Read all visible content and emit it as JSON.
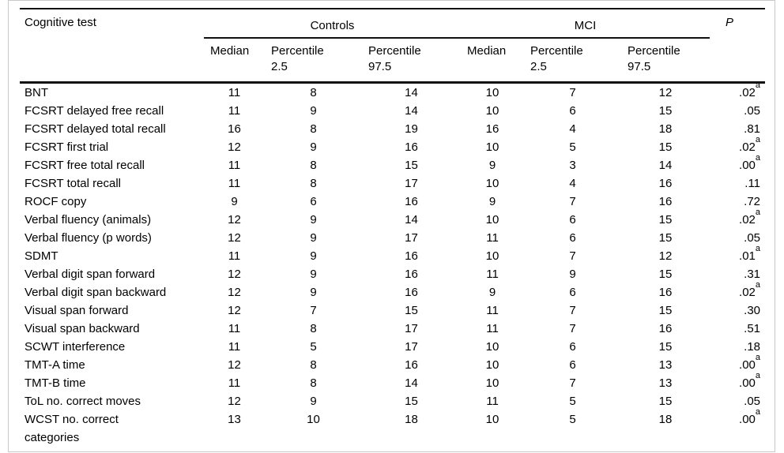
{
  "table": {
    "header": {
      "cognitive_test": "Cognitive test",
      "groups": [
        "Controls",
        "MCI"
      ],
      "p": "P",
      "sub": [
        "Median",
        "Percentile\n2.5",
        "Percentile\n97.5",
        "Median",
        "Percentile\n2.5",
        "Percentile\n97.5"
      ]
    },
    "rows": [
      {
        "label": "BNT",
        "values": [
          "11",
          "8",
          "14",
          "10",
          "7",
          "12"
        ],
        "p": ".02",
        "p_sup": "a"
      },
      {
        "label": "FCSRT delayed free recall",
        "values": [
          "11",
          "9",
          "14",
          "10",
          "6",
          "15"
        ],
        "p": ".05",
        "p_sup": ""
      },
      {
        "label": "FCSRT delayed total recall",
        "values": [
          "16",
          "8",
          "19",
          "16",
          "4",
          "18"
        ],
        "p": ".81",
        "p_sup": ""
      },
      {
        "label": "FCSRT first trial",
        "values": [
          "12",
          "9",
          "16",
          "10",
          "5",
          "15"
        ],
        "p": ".02",
        "p_sup": "a"
      },
      {
        "label": "FCSRT free total recall",
        "values": [
          "11",
          "8",
          "15",
          "9",
          "3",
          "14"
        ],
        "p": ".00",
        "p_sup": "a"
      },
      {
        "label": "FCSRT total recall",
        "values": [
          "11",
          "8",
          "17",
          "10",
          "4",
          "16"
        ],
        "p": ".11",
        "p_sup": ""
      },
      {
        "label": "ROCF copy",
        "values": [
          "9",
          "6",
          "16",
          "9",
          "7",
          "16"
        ],
        "p": ".72",
        "p_sup": ""
      },
      {
        "label": "Verbal fluency (animals)",
        "values": [
          "12",
          "9",
          "14",
          "10",
          "6",
          "15"
        ],
        "p": ".02",
        "p_sup": "a"
      },
      {
        "label": "Verbal fluency (p words)",
        "values": [
          "12",
          "9",
          "17",
          "11",
          "6",
          "15"
        ],
        "p": ".05",
        "p_sup": ""
      },
      {
        "label": "SDMT",
        "values": [
          "11",
          "9",
          "16",
          "10",
          "7",
          "12"
        ],
        "p": ".01",
        "p_sup": "a"
      },
      {
        "label": "Verbal digit span forward",
        "values": [
          "12",
          "9",
          "16",
          "11",
          "9",
          "15"
        ],
        "p": ".31",
        "p_sup": ""
      },
      {
        "label": "Verbal digit span backward",
        "values": [
          "12",
          "9",
          "16",
          "9",
          "6",
          "16"
        ],
        "p": ".02",
        "p_sup": "a"
      },
      {
        "label": "Visual span forward",
        "values": [
          "12",
          "7",
          "15",
          "11",
          "7",
          "15"
        ],
        "p": ".30",
        "p_sup": ""
      },
      {
        "label": "Visual span backward",
        "values": [
          "11",
          "8",
          "17",
          "11",
          "7",
          "16"
        ],
        "p": ".51",
        "p_sup": ""
      },
      {
        "label": "SCWT interference",
        "values": [
          "11",
          "5",
          "17",
          "10",
          "6",
          "15"
        ],
        "p": ".18",
        "p_sup": ""
      },
      {
        "label": "TMT-A time",
        "values": [
          "12",
          "8",
          "16",
          "10",
          "6",
          "13"
        ],
        "p": ".00",
        "p_sup": "a"
      },
      {
        "label": "TMT-B time",
        "values": [
          "11",
          "8",
          "14",
          "10",
          "7",
          "13"
        ],
        "p": ".00",
        "p_sup": "a"
      },
      {
        "label": "ToL no. correct moves",
        "values": [
          "12",
          "9",
          "15",
          "11",
          "5",
          "15"
        ],
        "p": ".05",
        "p_sup": ""
      },
      {
        "label": "WCST no. correct\ncategories",
        "values": [
          "13",
          "10",
          "18",
          "10",
          "5",
          "18"
        ],
        "p": ".00",
        "p_sup": "a"
      }
    ]
  }
}
